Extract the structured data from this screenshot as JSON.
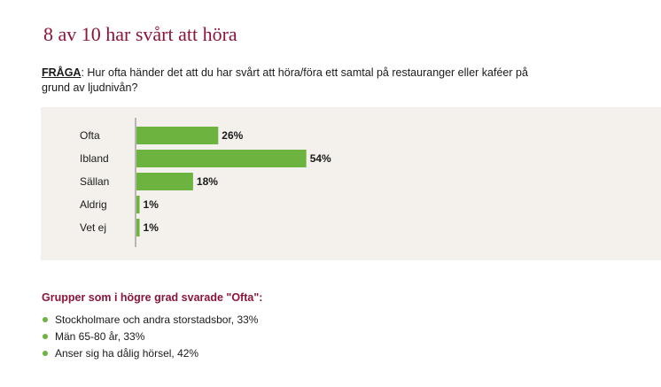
{
  "title": "8 av 10 har svårt att höra",
  "question": {
    "label": "FRÅGA",
    "text": ": Hur ofta händer det att du har svårt att höra/föra ett samtal på restauranger eller kaféer på grund av ljudnivån?"
  },
  "colors": {
    "title": "#8b1538",
    "bar": "#6db33f",
    "panel": "#f4f1ec"
  },
  "chart_data": {
    "type": "bar",
    "orientation": "horizontal",
    "categories": [
      "Ofta",
      "Ibland",
      "Sällan",
      "Aldrig",
      "Vet ej"
    ],
    "values": [
      26,
      54,
      18,
      1,
      1
    ],
    "value_labels": [
      "26%",
      "54%",
      "18%",
      "1%",
      "1%"
    ],
    "xlim": [
      0,
      100
    ],
    "grid": false
  },
  "groups": {
    "heading": "Grupper som i högre grad svarade \"Ofta\":",
    "items": [
      "Stockholmare och andra storstadsbor, 33%",
      "Män 65-80 år, 33%",
      "Anser sig ha dålig hörsel, 42%"
    ]
  }
}
